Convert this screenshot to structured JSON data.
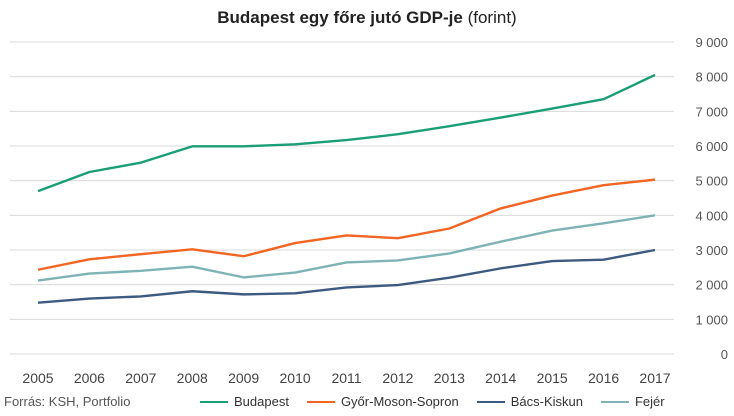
{
  "chart_data": {
    "type": "line",
    "title_bold": "Budapest egy főre jutó GDP-je",
    "title_normal": "(forint)",
    "source": "Forrás: KSH, Portfolio",
    "x": [
      "2005",
      "2006",
      "2007",
      "2008",
      "2009",
      "2010",
      "2011",
      "2012",
      "2013",
      "2014",
      "2015",
      "2016",
      "2017"
    ],
    "yticks": [
      "0",
      "1 000",
      "2 000",
      "3 000",
      "4 000",
      "5 000",
      "6 000",
      "7 000",
      "8 000",
      "9 000"
    ],
    "ylim": [
      0,
      9000
    ],
    "grid": true,
    "y_axis_side": "right",
    "legend_position": "bottom",
    "series": [
      {
        "name": "Budapest",
        "color": "#1a9e77",
        "values": [
          4700,
          5250,
          5520,
          5990,
          5990,
          6050,
          6170,
          6340,
          6570,
          6820,
          7080,
          7350,
          8050
        ]
      },
      {
        "name": "Győr-Moson-Sopron",
        "color": "#f26522",
        "values": [
          2430,
          2730,
          2880,
          3020,
          2820,
          3200,
          3420,
          3340,
          3620,
          4200,
          4570,
          4870,
          5030
        ]
      },
      {
        "name": "Bács-Kiskun",
        "color": "#3d5a80",
        "values": [
          1480,
          1600,
          1660,
          1810,
          1720,
          1750,
          1920,
          1990,
          2200,
          2470,
          2680,
          2720,
          3000
        ]
      },
      {
        "name": "Fejér",
        "color": "#7fb3b6",
        "values": [
          2120,
          2320,
          2400,
          2520,
          2210,
          2350,
          2640,
          2700,
          2900,
          3240,
          3560,
          3770,
          4000
        ]
      }
    ]
  }
}
